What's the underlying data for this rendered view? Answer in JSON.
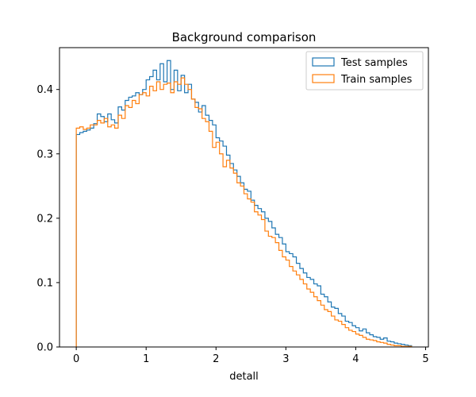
{
  "chart_data": {
    "type": "histogram-step",
    "title": "Background comparison",
    "xlabel": "detall",
    "ylabel": "",
    "xlim": [
      -0.24,
      5.04
    ],
    "ylim": [
      0,
      0.465
    ],
    "xticks": [
      0,
      1,
      2,
      3,
      4,
      5
    ],
    "yticks": [
      0.0,
      0.1,
      0.2,
      0.3,
      0.4
    ],
    "grid": false,
    "legend_position": "top-right",
    "bin_start": 0.0,
    "bin_width": 0.05,
    "colors": {
      "test": "#1f77b4",
      "train": "#ff7f0e"
    },
    "series": [
      {
        "name": "Test samples",
        "color": "#1f77b4",
        "values": [
          0.33,
          0.333,
          0.335,
          0.337,
          0.34,
          0.347,
          0.362,
          0.358,
          0.35,
          0.362,
          0.353,
          0.348,
          0.373,
          0.368,
          0.383,
          0.388,
          0.39,
          0.395,
          0.392,
          0.4,
          0.415,
          0.42,
          0.43,
          0.415,
          0.44,
          0.412,
          0.445,
          0.4,
          0.43,
          0.398,
          0.422,
          0.395,
          0.408,
          0.385,
          0.38,
          0.365,
          0.375,
          0.36,
          0.352,
          0.345,
          0.325,
          0.32,
          0.312,
          0.298,
          0.285,
          0.275,
          0.265,
          0.255,
          0.245,
          0.242,
          0.228,
          0.22,
          0.215,
          0.21,
          0.2,
          0.195,
          0.185,
          0.175,
          0.17,
          0.16,
          0.148,
          0.145,
          0.14,
          0.13,
          0.122,
          0.115,
          0.108,
          0.105,
          0.098,
          0.095,
          0.082,
          0.078,
          0.07,
          0.062,
          0.06,
          0.052,
          0.048,
          0.04,
          0.038,
          0.033,
          0.03,
          0.025,
          0.028,
          0.022,
          0.019,
          0.016,
          0.015,
          0.012,
          0.014,
          0.009,
          0.008,
          0.006,
          0.005,
          0.004,
          0.003,
          0.002
        ]
      },
      {
        "name": "Train samples",
        "color": "#ff7f0e",
        "values": [
          0.34,
          0.342,
          0.338,
          0.34,
          0.345,
          0.345,
          0.352,
          0.348,
          0.355,
          0.342,
          0.345,
          0.34,
          0.36,
          0.355,
          0.375,
          0.372,
          0.383,
          0.378,
          0.392,
          0.395,
          0.39,
          0.405,
          0.398,
          0.412,
          0.4,
          0.408,
          0.41,
          0.395,
          0.412,
          0.408,
          0.418,
          0.408,
          0.4,
          0.385,
          0.372,
          0.37,
          0.355,
          0.35,
          0.335,
          0.31,
          0.318,
          0.3,
          0.28,
          0.29,
          0.278,
          0.27,
          0.255,
          0.25,
          0.238,
          0.23,
          0.225,
          0.21,
          0.205,
          0.198,
          0.18,
          0.172,
          0.17,
          0.162,
          0.15,
          0.14,
          0.135,
          0.125,
          0.118,
          0.112,
          0.105,
          0.098,
          0.09,
          0.085,
          0.078,
          0.072,
          0.065,
          0.058,
          0.055,
          0.048,
          0.042,
          0.04,
          0.035,
          0.03,
          0.026,
          0.024,
          0.02,
          0.018,
          0.015,
          0.012,
          0.011,
          0.01,
          0.008,
          0.007,
          0.006,
          0.004,
          0.003,
          0.002,
          0.002,
          0.001,
          0.001,
          0.001
        ]
      }
    ]
  }
}
